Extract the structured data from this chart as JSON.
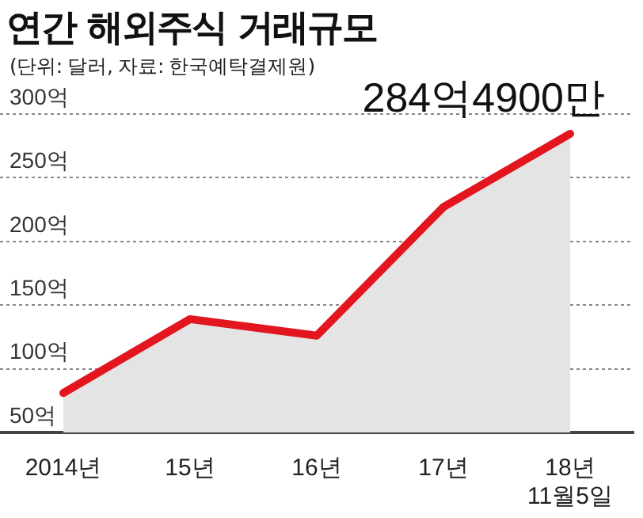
{
  "chart_data": {
    "type": "area",
    "title": "연간 해외주식 거래규모",
    "subtitle": "(단위: 달러, 자료: 한국예탁결제원)",
    "categories": [
      "2014년",
      "15년",
      "16년",
      "17년",
      "18년\n11월5일"
    ],
    "series": [
      {
        "color": "#e3151f",
        "values": [
          81,
          139,
          126,
          227,
          284.49
        ]
      }
    ],
    "ylim": [
      50,
      300
    ],
    "yticks": [
      {
        "value": 50,
        "label": "50억"
      },
      {
        "value": 100,
        "label": "100억"
      },
      {
        "value": 150,
        "label": "150억"
      },
      {
        "value": 200,
        "label": "200억"
      },
      {
        "value": 250,
        "label": "250억"
      },
      {
        "value": 300,
        "label": "300억"
      }
    ],
    "grid": "y",
    "legend": false,
    "marker": "none",
    "line_style": "solid",
    "annotations": [
      {
        "text": "284억4900만",
        "x": "18년\n11월5일",
        "y": 284.49
      }
    ]
  }
}
